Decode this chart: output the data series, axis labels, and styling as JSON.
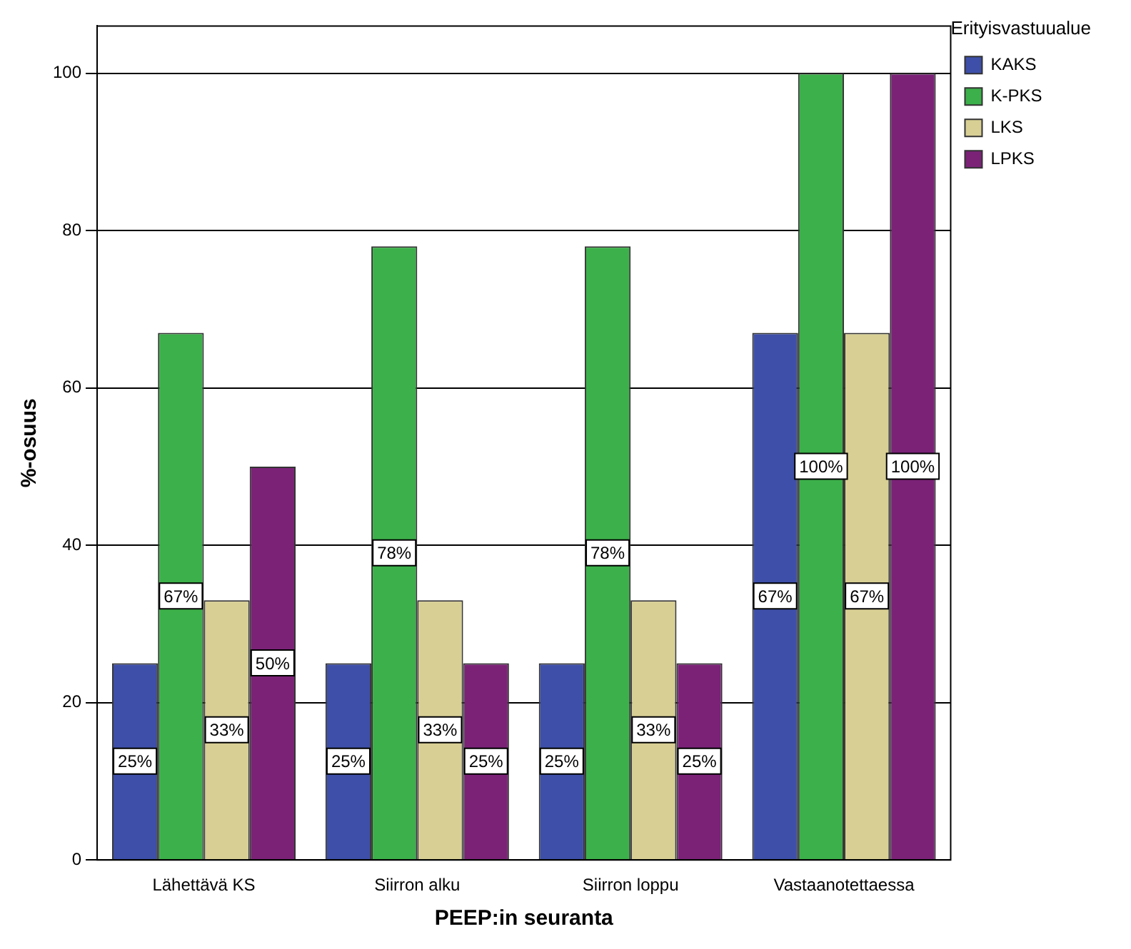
{
  "chart_data": {
    "type": "bar",
    "xlabel": "PEEP:in seuranta",
    "ylabel": "%-osuus",
    "legend_title": "Erityisvastuualue",
    "legend": "top right",
    "grid": "y",
    "categories": [
      "Lähettävä KS",
      "Siirron alku",
      "Siirron loppu",
      "Vastaanotettaessa"
    ],
    "ylim": [
      0,
      106
    ],
    "yticks": [
      0,
      20,
      40,
      60,
      80,
      100
    ],
    "series": [
      {
        "name": "KAKS",
        "color": "#3d4fa8",
        "values": [
          25,
          25,
          25,
          67
        ],
        "value_labels": [
          "25%",
          "25%",
          "25%",
          "67%"
        ]
      },
      {
        "name": "K-PKS",
        "color": "#3cb04a",
        "values": [
          67,
          78,
          78,
          100
        ],
        "value_labels": [
          "67%",
          "78%",
          "78%",
          "100%"
        ]
      },
      {
        "name": "LKS",
        "color": "#d8cf94",
        "values": [
          33,
          33,
          33,
          67
        ],
        "value_labels": [
          "33%",
          "33%",
          "33%",
          "67%"
        ]
      },
      {
        "name": "LPKS",
        "color": "#7b2277",
        "values": [
          50,
          25,
          25,
          100
        ],
        "value_labels": [
          "50%",
          "25%",
          "25%",
          "100%"
        ]
      }
    ]
  }
}
